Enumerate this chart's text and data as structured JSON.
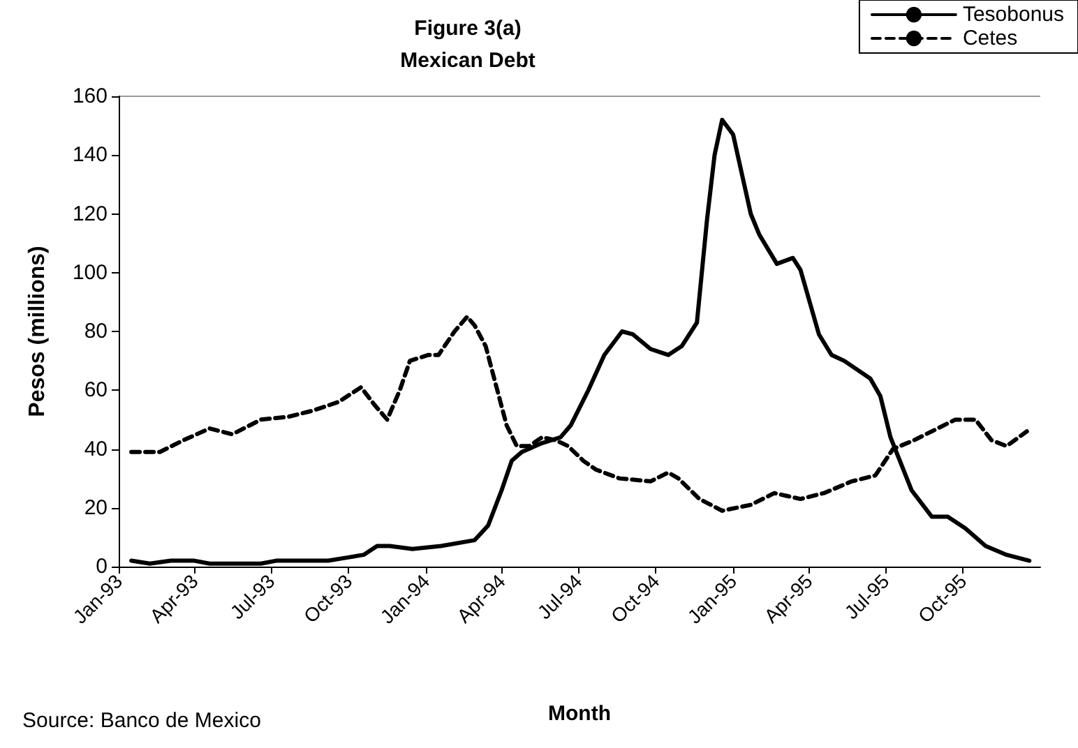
{
  "chart_data": {
    "type": "line",
    "title": "Figure 3(a)",
    "subtitle": "Mexican Debt",
    "xlabel": "Month",
    "ylabel": "Pesos (millions)",
    "annotations": [
      "Source: Banco de Mexico"
    ],
    "xlim": [
      "1993-01-01",
      "1996-01-01"
    ],
    "xticks": [
      {
        "value": "1993-01-01",
        "label": "Jan-93"
      },
      {
        "value": "1993-04-01",
        "label": "Apr-93"
      },
      {
        "value": "1993-07-01",
        "label": "Jul-93"
      },
      {
        "value": "1993-10-01",
        "label": "Oct-93"
      },
      {
        "value": "1994-01-01",
        "label": "Jan-94"
      },
      {
        "value": "1994-04-01",
        "label": "Apr-94"
      },
      {
        "value": "1994-07-01",
        "label": "Jul-94"
      },
      {
        "value": "1994-10-01",
        "label": "Oct-94"
      },
      {
        "value": "1995-01-01",
        "label": "Jan-95"
      },
      {
        "value": "1995-04-01",
        "label": "Apr-95"
      },
      {
        "value": "1995-07-01",
        "label": "Jul-95"
      },
      {
        "value": "1995-10-01",
        "label": "Oct-95"
      }
    ],
    "ylim": [
      0,
      160
    ],
    "yticks": [
      0,
      20,
      40,
      60,
      80,
      100,
      120,
      140,
      160
    ],
    "grid": false,
    "legend": "top right",
    "marker": "none",
    "series": [
      {
        "name": "Tesobonus",
        "color": "#000000",
        "line_style": "solid",
        "x": [
          "1993-01-16",
          "1993-02-07",
          "1993-03-04",
          "1993-04-01",
          "1993-04-19",
          "1993-06-19",
          "1993-07-07",
          "1993-09-07",
          "1993-09-28",
          "1993-10-19",
          "1993-11-04",
          "1993-11-19",
          "1993-12-16",
          "1994-01-19",
          "1994-02-28",
          "1994-03-16",
          "1994-04-01",
          "1994-04-13",
          "1994-04-25",
          "1994-05-19",
          "1994-06-10",
          "1994-06-22",
          "1994-07-13",
          "1994-08-01",
          "1994-08-22",
          "1994-09-04",
          "1994-09-25",
          "1994-10-16",
          "1994-11-01",
          "1994-11-19",
          "1994-12-01",
          "1994-12-10",
          "1994-12-19",
          "1995-01-01",
          "1995-01-22",
          "1995-02-01",
          "1995-02-22",
          "1995-03-13",
          "1995-03-22",
          "1995-04-13",
          "1995-04-28",
          "1995-05-13",
          "1995-06-13",
          "1995-06-25",
          "1995-07-07",
          "1995-08-01",
          "1995-08-25",
          "1995-09-13",
          "1995-10-04",
          "1995-10-28",
          "1995-11-22",
          "1995-12-19"
        ],
        "values": [
          2,
          1,
          2,
          2,
          1,
          1,
          2,
          2,
          3,
          4,
          7,
          7,
          6,
          7,
          9,
          14,
          26,
          36,
          39,
          42,
          44,
          48,
          60,
          72,
          80,
          79,
          74,
          72,
          75,
          83,
          118,
          140,
          152,
          147,
          120,
          113,
          103,
          105,
          101,
          79,
          72,
          70,
          64,
          58,
          44,
          26,
          17,
          17,
          13,
          7,
          4,
          2
        ]
      },
      {
        "name": "Cetes",
        "color": "#000000",
        "line_style": "dashed",
        "x": [
          "1993-01-16",
          "1993-02-19",
          "1993-03-19",
          "1993-04-19",
          "1993-05-16",
          "1993-06-19",
          "1993-07-22",
          "1993-08-19",
          "1993-09-19",
          "1993-10-16",
          "1993-11-01",
          "1993-11-16",
          "1993-12-01",
          "1993-12-13",
          "1994-01-04",
          "1994-01-16",
          "1994-02-04",
          "1994-02-19",
          "1994-02-28",
          "1994-03-13",
          "1994-03-25",
          "1994-04-07",
          "1994-04-19",
          "1994-05-04",
          "1994-05-19",
          "1994-06-04",
          "1994-06-19",
          "1994-07-07",
          "1994-07-22",
          "1994-08-19",
          "1994-09-25",
          "1994-10-16",
          "1994-10-28",
          "1994-11-22",
          "1994-12-19",
          "1995-01-22",
          "1995-02-19",
          "1995-03-22",
          "1995-04-19",
          "1995-05-22",
          "1995-06-19",
          "1995-07-10",
          "1995-08-04",
          "1995-09-22",
          "1995-10-16",
          "1995-11-04",
          "1995-11-22",
          "1995-12-16"
        ],
        "values": [
          39,
          39,
          43,
          47,
          45,
          50,
          51,
          53,
          56,
          61,
          55,
          50,
          60,
          70,
          72,
          72,
          80,
          85,
          82,
          75,
          62,
          48,
          41,
          41,
          44,
          43,
          41,
          36,
          33,
          30,
          29,
          32,
          30,
          23,
          19,
          21,
          25,
          23,
          25,
          29,
          31,
          40,
          43,
          50,
          50,
          43,
          41,
          46
        ]
      }
    ]
  }
}
